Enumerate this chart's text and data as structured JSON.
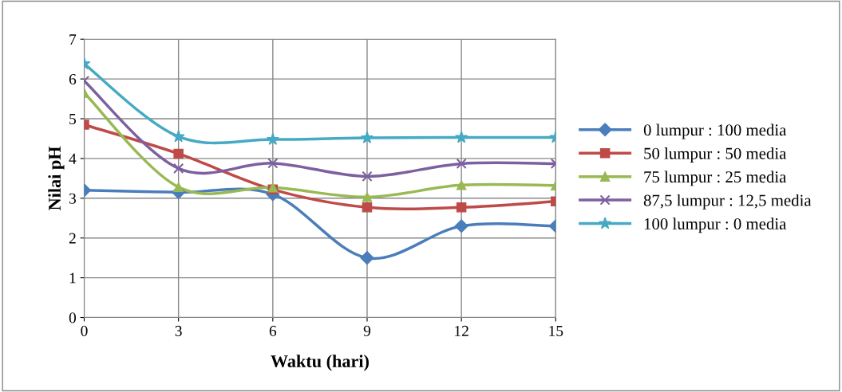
{
  "chart_data": {
    "type": "line",
    "xlabel": "Waktu (hari)",
    "ylabel": "Nilai pH",
    "x": [
      0,
      3,
      6,
      9,
      12,
      15
    ],
    "xlim": [
      0,
      15
    ],
    "xticks": [
      0,
      3,
      6,
      9,
      12,
      15
    ],
    "ylim": [
      0,
      7
    ],
    "yticks": [
      0,
      1,
      2,
      3,
      4,
      5,
      6,
      7
    ],
    "grid": true,
    "legend": "right",
    "line_style": "solid",
    "series": [
      {
        "name": "0 lumpur : 100 media",
        "color": "#4a7ebb",
        "marker": "diamond",
        "values": [
          3.2,
          3.15,
          3.1,
          1.5,
          2.3,
          2.3
        ]
      },
      {
        "name": "50 lumpur : 50 media",
        "color": "#be4b48",
        "marker": "square",
        "values": [
          4.85,
          4.12,
          3.22,
          2.77,
          2.77,
          2.92
        ]
      },
      {
        "name": "75 lumpur : 25 media",
        "color": "#98b954",
        "marker": "triangle",
        "values": [
          5.65,
          3.28,
          3.27,
          3.03,
          3.33,
          3.32
        ]
      },
      {
        "name": "87,5 lumpur : 12,5 media",
        "color": "#7d60a0",
        "marker": "cross",
        "values": [
          5.95,
          3.75,
          3.88,
          3.55,
          3.87,
          3.87
        ]
      },
      {
        "name": "100 lumpur : 0 media",
        "color": "#46aac5",
        "marker": "star",
        "values": [
          6.38,
          4.55,
          4.48,
          4.52,
          4.53,
          4.53
        ]
      }
    ]
  }
}
